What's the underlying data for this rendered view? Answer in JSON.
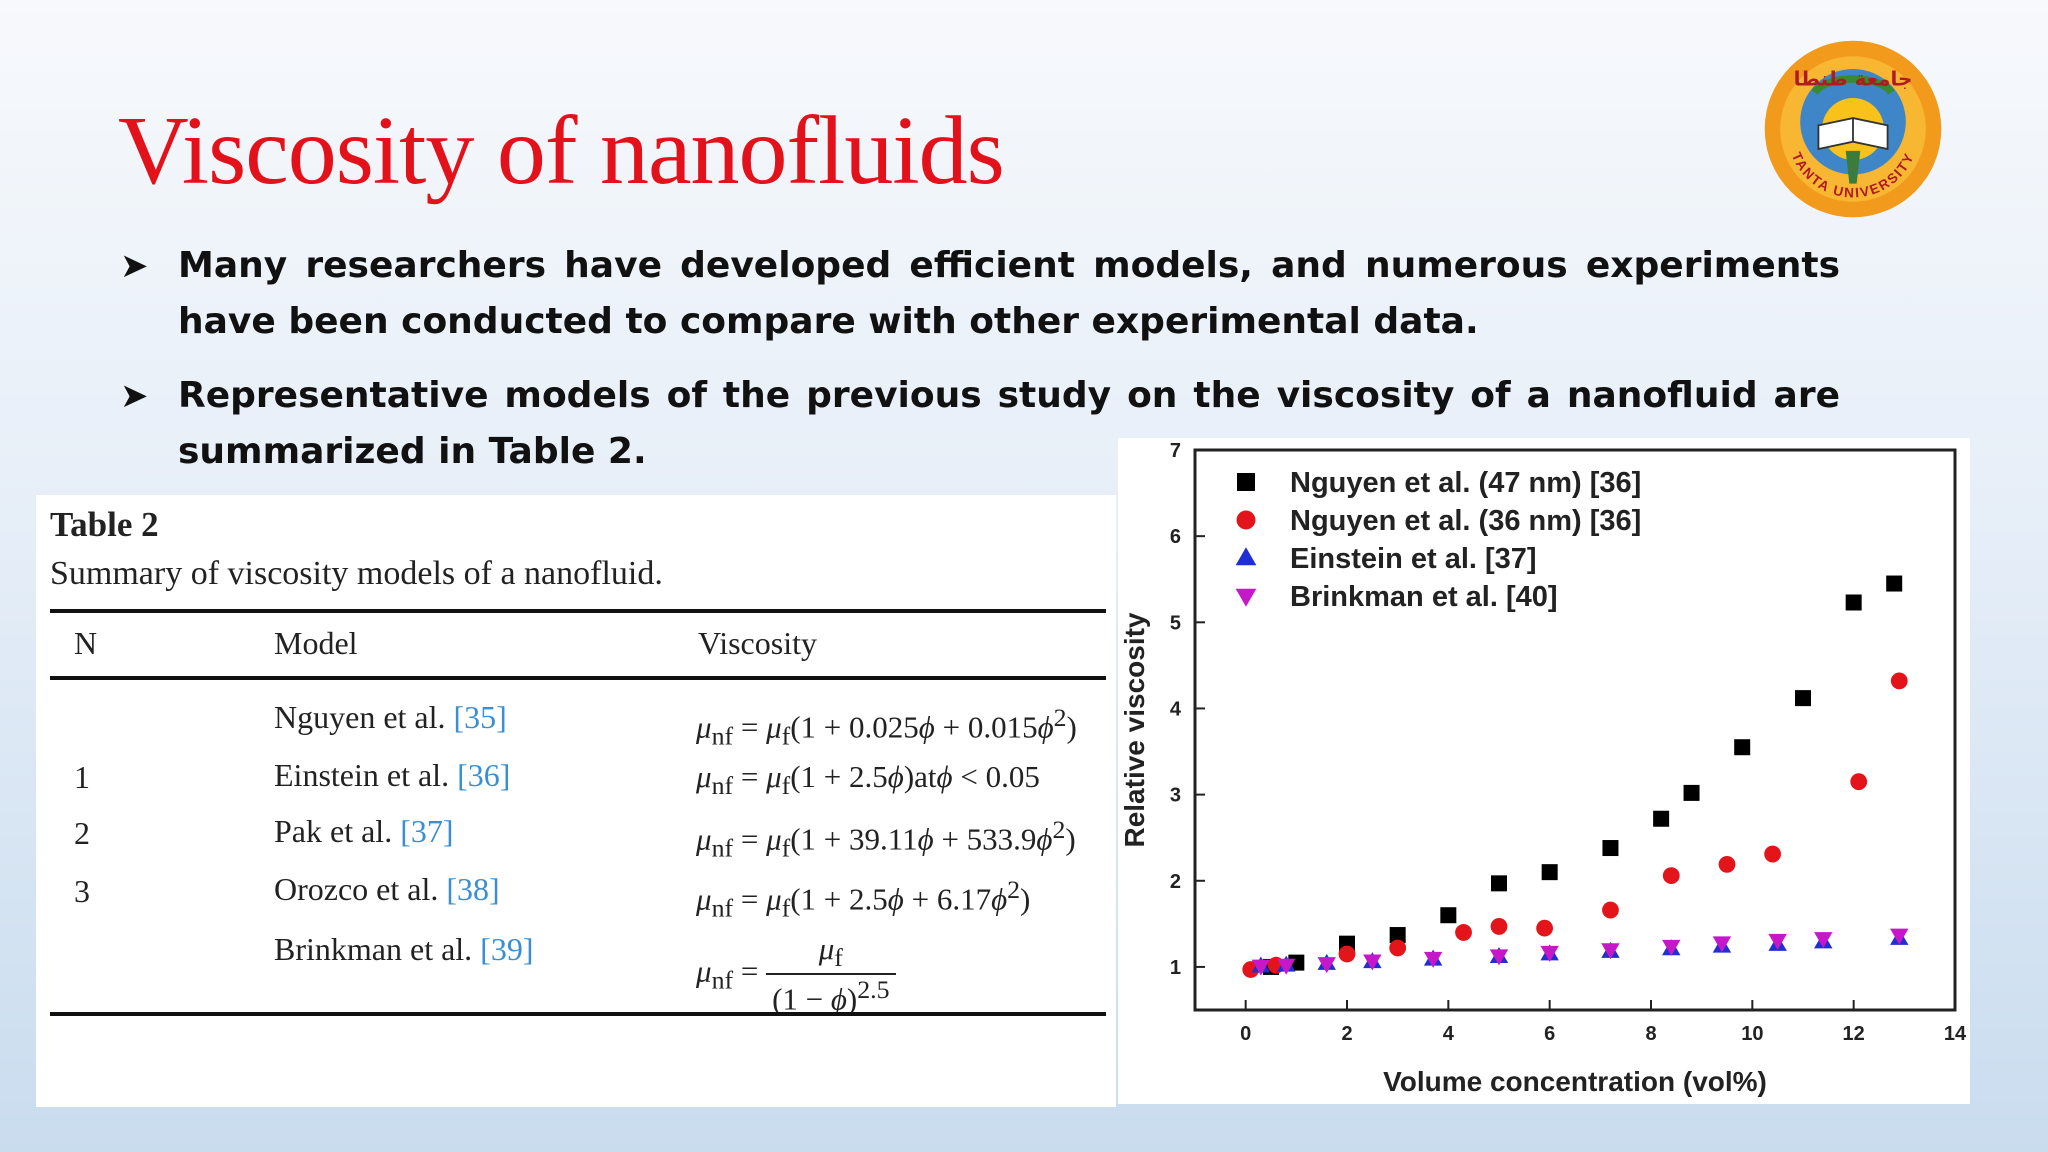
{
  "slide": {
    "title": "Viscosity of nanofluids",
    "bullets": [
      "Many researchers have developed efficient models, and numerous experiments have been conducted to compare with other experimental data.",
      "Representative models of the previous study on the viscosity of a nanofluid are summarized in Table 2."
    ],
    "logo": {
      "arabic_text": "جامعة طنطا",
      "latin_text": "TANTA UNIVERSITY",
      "colors": {
        "ring": "#f29a1c",
        "inner": "#3f86c8",
        "center": "#f8c21a",
        "text": "#b01a22"
      }
    }
  },
  "table": {
    "caption": "Table 2",
    "subtitle": "Summary of viscosity models of a nanofluid.",
    "headers": {
      "n": "N",
      "model": "Model",
      "viscosity": "Viscosity"
    },
    "rows": [
      {
        "n": "",
        "model": "Nguyen et al.",
        "ref": "[35]",
        "formula": "μnf = μf(1 + 0.025ϕ + 0.015ϕ²)"
      },
      {
        "n": "1",
        "model": "Einstein et al.",
        "ref": "[36]",
        "formula": "μnf = μf(1 + 2.5ϕ)atϕ < 0.05"
      },
      {
        "n": "2",
        "model": "Pak et al.",
        "ref": "[37]",
        "formula": "μnf = μf(1 + 39.11ϕ + 533.9ϕ²)"
      },
      {
        "n": "3",
        "model": "Orozco et al.",
        "ref": "[38]",
        "formula": "μnf = μf(1 + 2.5ϕ + 6.17ϕ²)"
      },
      {
        "n": "",
        "model": "Brinkman et al.",
        "ref": "[39]",
        "formula": "μnf = μf / (1 − ϕ)^2.5"
      }
    ],
    "ref_color": "#3b8fd0"
  },
  "chart_data": {
    "type": "scatter",
    "xlabel": "Volume concentration (vol%)",
    "ylabel": "Relative viscosity",
    "xlim": [
      -1,
      14
    ],
    "ylim": [
      0.5,
      7
    ],
    "xticks": [
      "0",
      "2",
      "4",
      "6",
      "8",
      "10",
      "12",
      "14"
    ],
    "yticks": [
      "1",
      "2",
      "3",
      "4",
      "5",
      "6",
      "7"
    ],
    "legend_position": "top-left",
    "series": [
      {
        "name": "Nguyen et al. (47 nm) [36]",
        "marker": "square",
        "color": "#000000",
        "x": [
          0.5,
          1.0,
          2.0,
          3.0,
          4.0,
          5.0,
          6.0,
          7.2,
          8.2,
          8.8,
          9.8,
          11.0,
          12.0,
          12.8
        ],
        "y": [
          1.0,
          1.05,
          1.27,
          1.37,
          1.6,
          1.97,
          2.1,
          2.38,
          2.72,
          3.02,
          3.55,
          4.12,
          5.23,
          5.45
        ]
      },
      {
        "name": "Nguyen et al. (36 nm) [36]",
        "marker": "circle",
        "color": "#e4141b",
        "x": [
          0.1,
          0.6,
          2.0,
          3.0,
          4.3,
          5.0,
          5.9,
          7.2,
          8.4,
          9.5,
          10.4,
          12.1,
          12.9
        ],
        "y": [
          0.97,
          1.02,
          1.15,
          1.22,
          1.4,
          1.47,
          1.45,
          1.66,
          2.06,
          2.19,
          2.31,
          3.15,
          4.32
        ]
      },
      {
        "name": "Einstein et al. [37]",
        "marker": "triangle-up",
        "color": "#1f2fd1",
        "x": [
          0.3,
          0.8,
          1.6,
          2.5,
          3.7,
          5.0,
          6.0,
          7.2,
          8.4,
          9.4,
          10.5,
          11.4,
          12.9
        ],
        "y": [
          1.01,
          1.02,
          1.04,
          1.06,
          1.09,
          1.12,
          1.15,
          1.18,
          1.21,
          1.24,
          1.26,
          1.29,
          1.33
        ]
      },
      {
        "name": "Brinkman et al. [40]",
        "marker": "triangle-down",
        "color": "#c519c9",
        "x": [
          0.3,
          0.8,
          1.6,
          2.5,
          3.7,
          5.0,
          6.0,
          7.2,
          8.4,
          9.4,
          10.5,
          11.4,
          12.9
        ],
        "y": [
          1.01,
          1.02,
          1.04,
          1.07,
          1.1,
          1.13,
          1.17,
          1.2,
          1.24,
          1.28,
          1.31,
          1.33,
          1.37
        ]
      }
    ]
  }
}
